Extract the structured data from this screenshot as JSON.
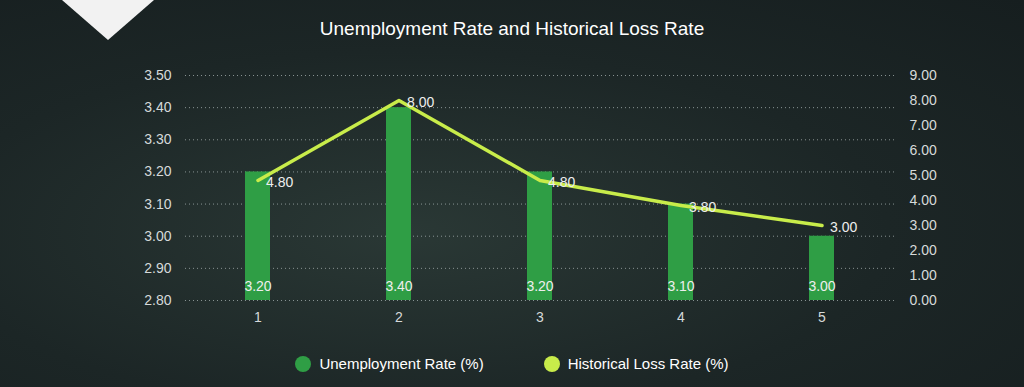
{
  "chart_data": {
    "type": "bar",
    "title": "Unemployment Rate and Historical Loss Rate",
    "categories": [
      "1",
      "2",
      "3",
      "4",
      "5"
    ],
    "series": [
      {
        "name": "Unemployment Rate (%)",
        "type": "bar",
        "color": "#2f9e45",
        "values": [
          3.2,
          3.4,
          3.2,
          3.1,
          3.0
        ],
        "value_labels": [
          "3.20",
          "3.40",
          "3.20",
          "3.10",
          "3.00"
        ]
      },
      {
        "name": "Historical Loss Rate (%)",
        "type": "line",
        "color": "#c8ec4a",
        "axis": "y2",
        "values": [
          4.8,
          8.0,
          4.8,
          3.8,
          3.0
        ],
        "value_labels": [
          "4.80",
          "8.00",
          "4.80",
          "3.80",
          "3.00"
        ]
      }
    ],
    "ylim": [
      2.8,
      3.5
    ],
    "yticks": [
      {
        "value": 2.8,
        "label": "2.80"
      },
      {
        "value": 2.9,
        "label": "2.90"
      },
      {
        "value": 3.0,
        "label": "3.00"
      },
      {
        "value": 3.1,
        "label": "3.10"
      },
      {
        "value": 3.2,
        "label": "3.20"
      },
      {
        "value": 3.3,
        "label": "3.30"
      },
      {
        "value": 3.4,
        "label": "3.40"
      },
      {
        "value": 3.5,
        "label": "3.50"
      }
    ],
    "y2lim": [
      0,
      9
    ],
    "y2ticks": [
      {
        "value": 0,
        "label": "0.00"
      },
      {
        "value": 1,
        "label": "1.00"
      },
      {
        "value": 2,
        "label": "2.00"
      },
      {
        "value": 3,
        "label": "3.00"
      },
      {
        "value": 4,
        "label": "4.00"
      },
      {
        "value": 5,
        "label": "5.00"
      },
      {
        "value": 6,
        "label": "6.00"
      },
      {
        "value": 7,
        "label": "7.00"
      },
      {
        "value": 8,
        "label": "8.00"
      },
      {
        "value": 9,
        "label": "9.00"
      }
    ],
    "grid": true,
    "legend": "bottom",
    "data_labels": true
  }
}
